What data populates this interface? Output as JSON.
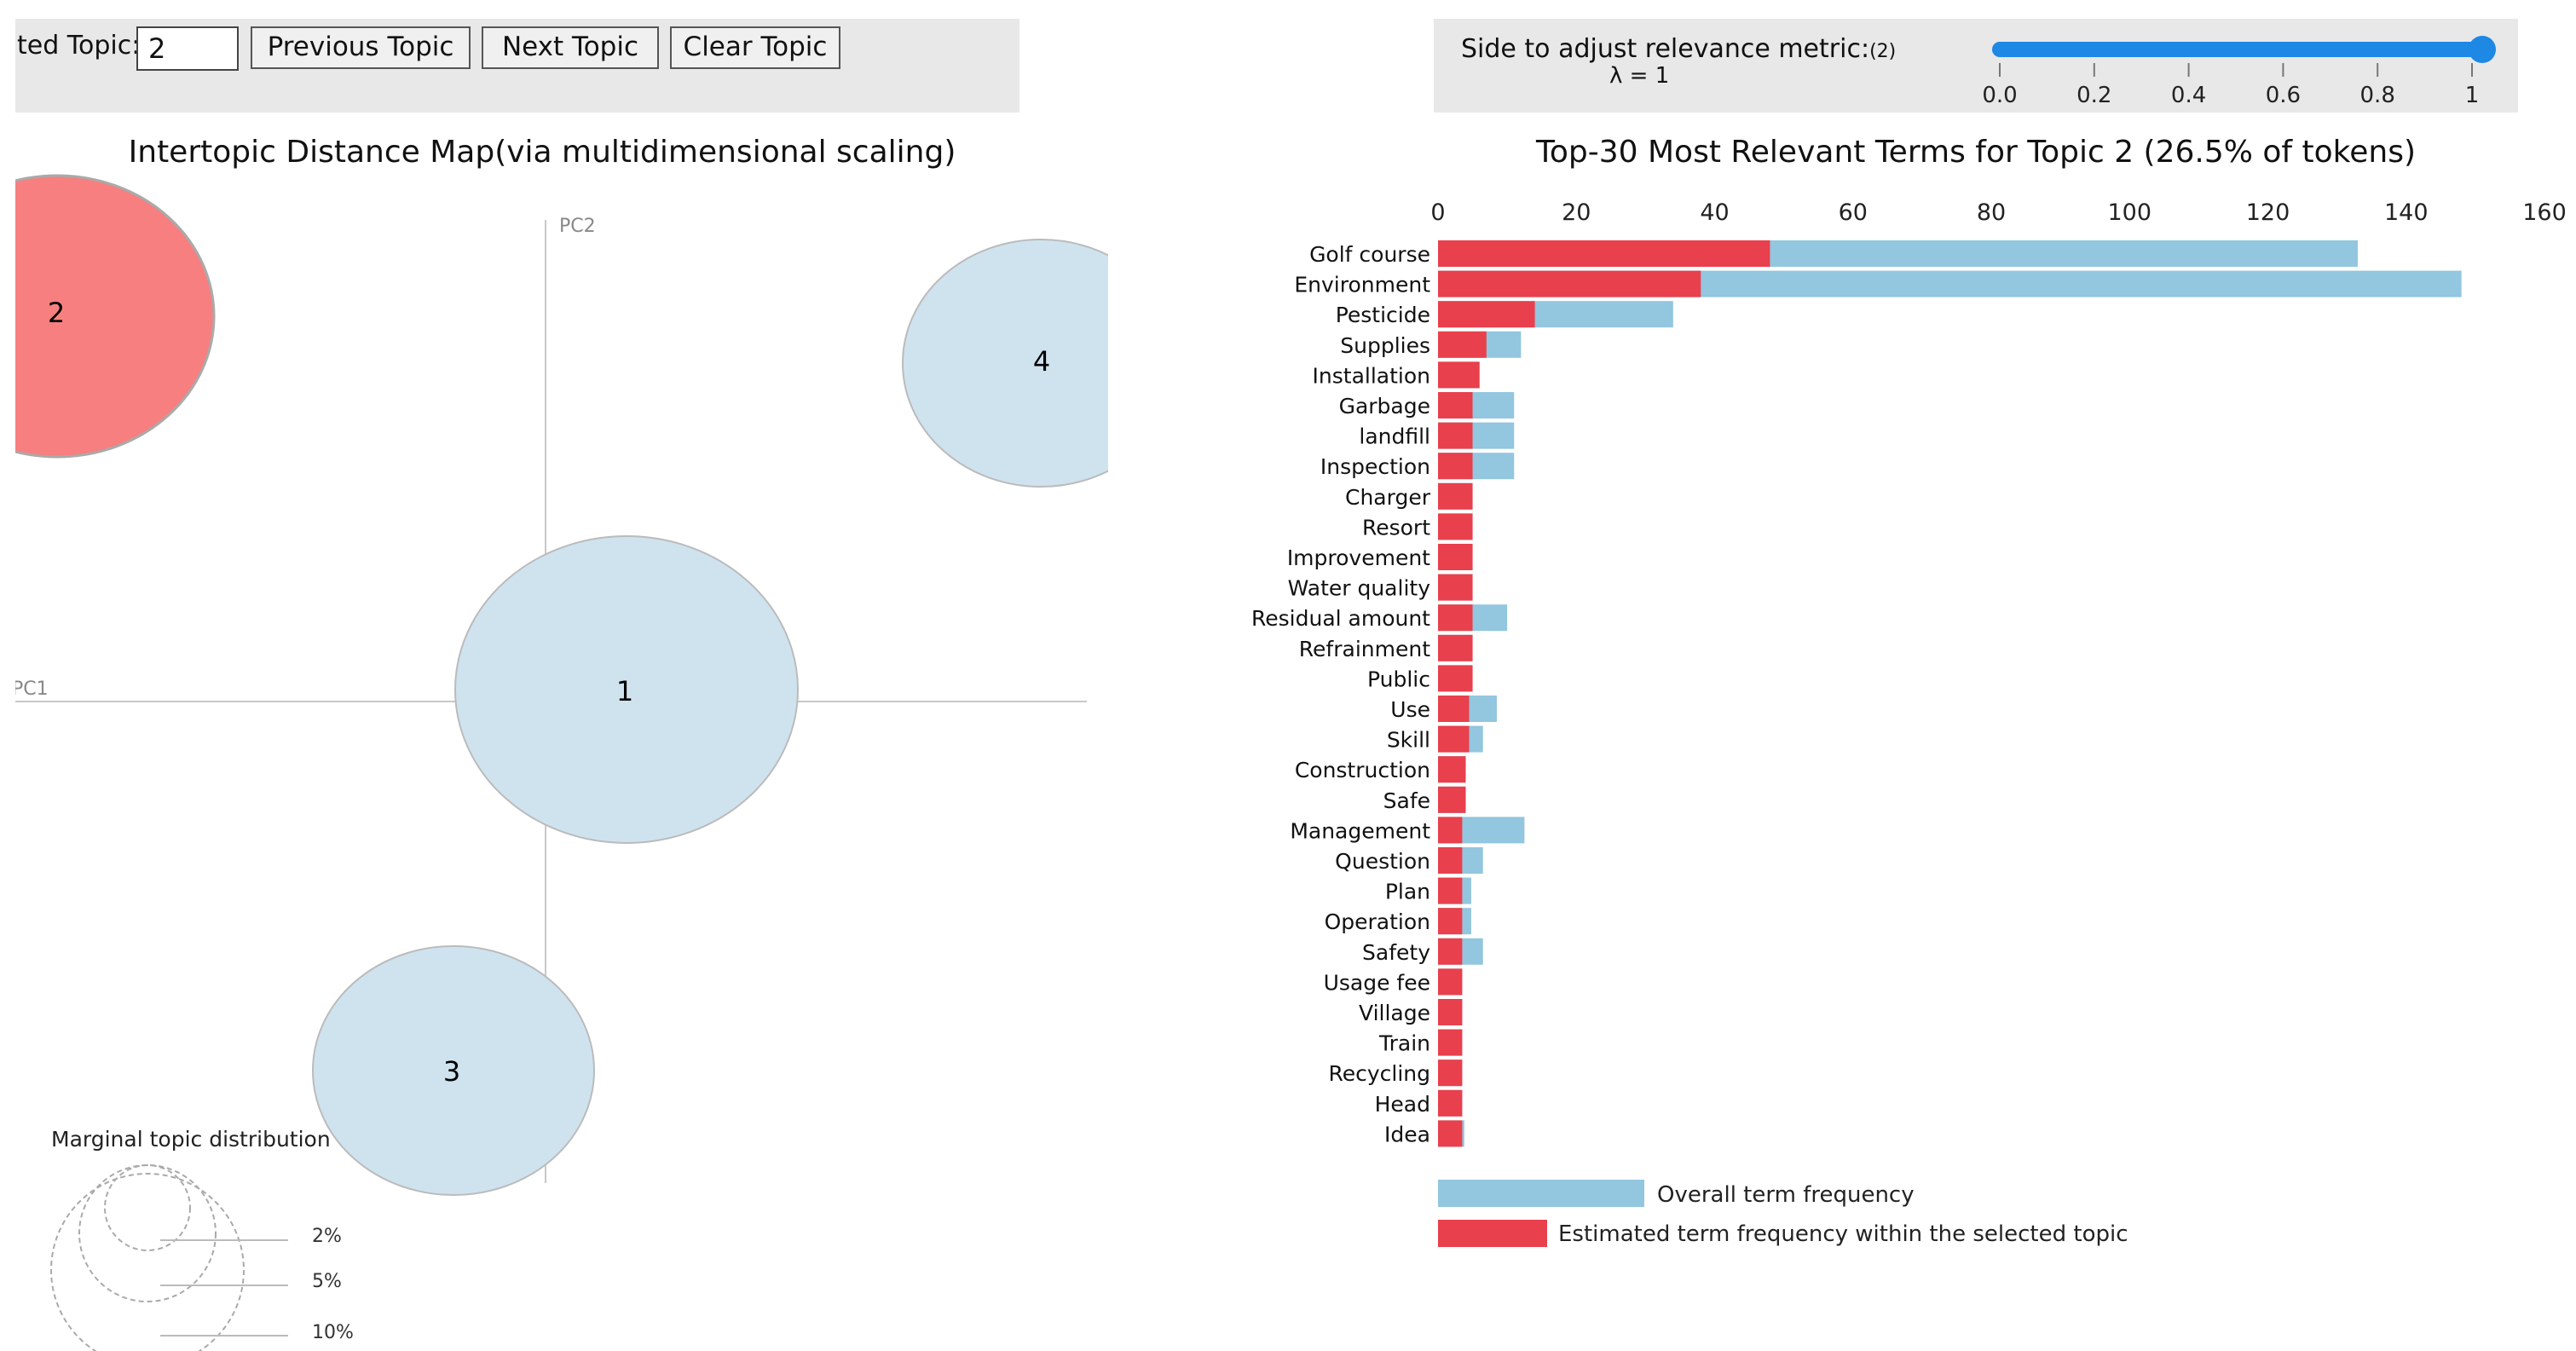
{
  "controls": {
    "selected_topic_label": "ted Topic:",
    "selected_topic_value": "2",
    "previous_label": "Previous Topic",
    "next_label": "Next Topic",
    "clear_label": "Clear Topic"
  },
  "slider": {
    "label": "Side to adjust relevance metric:",
    "label_ref": "(2)",
    "lambda_text": "λ = 1",
    "value": 1,
    "ticks": [
      "0.0",
      "0.2",
      "0.4",
      "0.6",
      "0.8",
      "1"
    ],
    "color": "#1e88e5"
  },
  "map": {
    "title": "Intertopic Distance Map(via multidimensional scaling)",
    "pc1": "PC1",
    "pc2": "PC2",
    "topics": [
      {
        "id": "1",
        "selected": false
      },
      {
        "id": "2",
        "selected": true
      },
      {
        "id": "3",
        "selected": false
      },
      {
        "id": "4",
        "selected": false
      }
    ],
    "legend_title": "Marginal topic distribution",
    "legend_items": [
      "2%",
      "5%",
      "10%"
    ],
    "bubble_color": "#cfe3ef",
    "selected_color": "#f77f7f"
  },
  "chart_data": {
    "type": "bar",
    "title": "Top-30 Most Relevant Terms for Topic 2 (26.5% of tokens)",
    "xlim": [
      0,
      160
    ],
    "xticks": [
      0,
      20,
      40,
      60,
      80,
      100,
      120,
      140,
      160
    ],
    "categories": [
      "Golf course",
      "Environment",
      "Pesticide",
      "Supplies",
      "Installation",
      "Garbage",
      "landfill",
      "Inspection",
      "Charger",
      "Resort",
      "Improvement",
      "Water quality",
      "Residual amount",
      "Refrainment",
      "Public",
      "Use",
      "Skill",
      "Construction",
      "Safe",
      "Management",
      "Question",
      "Plan",
      "Operation",
      "Safety",
      "Usage fee",
      "Village",
      "Train",
      "Recycling",
      "Head",
      "Idea"
    ],
    "series": [
      {
        "name": "Overall term frequency",
        "color": "#93c6df",
        "values": [
          133,
          148,
          34,
          12,
          6,
          11,
          11,
          11,
          5,
          5,
          5,
          5,
          10,
          5,
          5,
          8.5,
          6.5,
          4,
          4,
          12.5,
          6.5,
          4.8,
          4.8,
          6.5,
          3.5,
          3.5,
          3.5,
          3.5,
          3.5,
          3.8
        ]
      },
      {
        "name": "Estimated term frequency within the selected topic",
        "color": "#e8404c",
        "values": [
          48,
          38,
          14,
          7,
          6,
          5,
          5,
          5,
          5,
          5,
          5,
          5,
          5,
          5,
          5,
          4.5,
          4.5,
          4,
          4,
          3.5,
          3.5,
          3.5,
          3.5,
          3.5,
          3.5,
          3.5,
          3.5,
          3.5,
          3.5,
          3.5
        ]
      }
    ]
  }
}
